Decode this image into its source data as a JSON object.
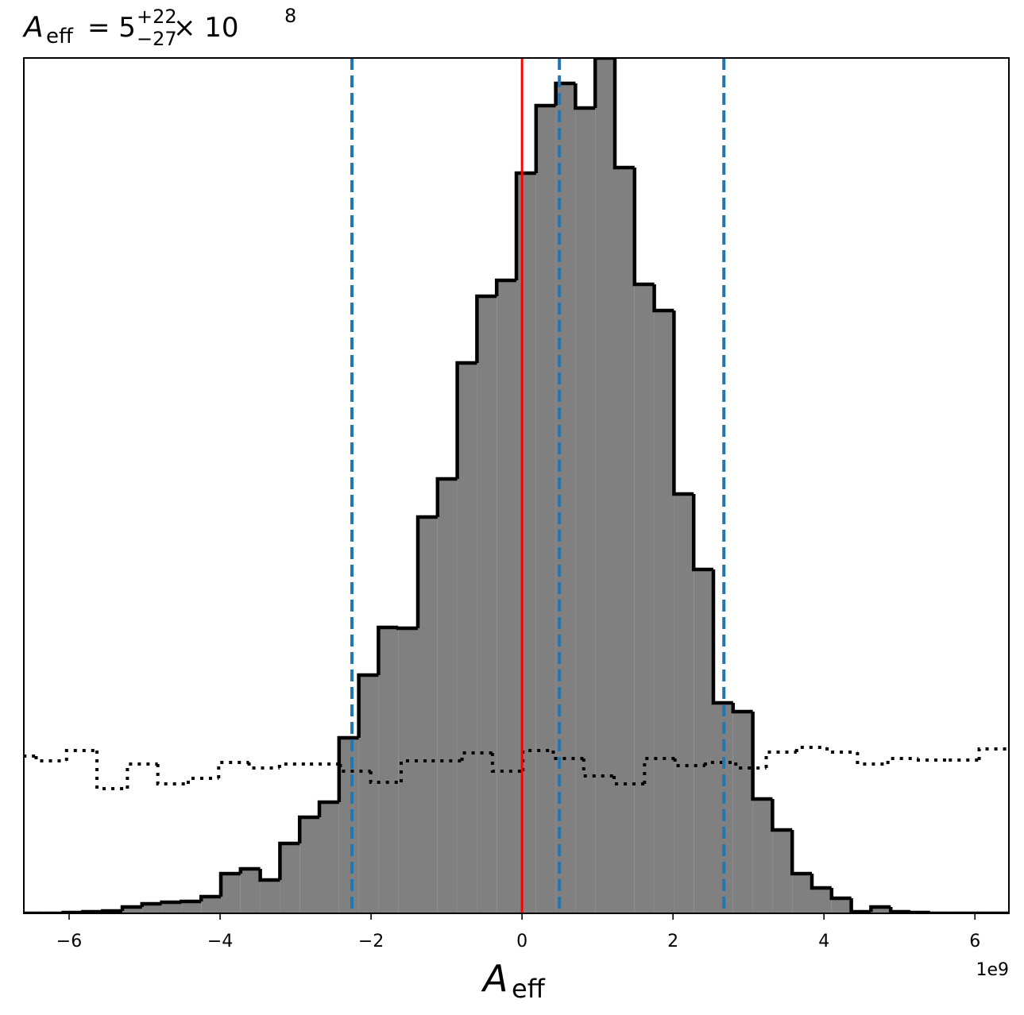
{
  "chart_data": {
    "type": "histogram",
    "title_parts": [
      "A",
      "eff",
      "= 5",
      "+22",
      "−27",
      "× 10",
      "8"
    ],
    "xlabel_parts": [
      "A",
      "eff"
    ],
    "x_offset_label": "1e9",
    "xlim": [
      -6.6,
      6.45
    ],
    "ylim": [
      0,
      1077
    ],
    "xticks": [
      {
        "value": -6,
        "label": "−6"
      },
      {
        "value": -4,
        "label": "−4"
      },
      {
        "value": -2,
        "label": "−2"
      },
      0,
      2,
      4,
      6
    ],
    "series": [
      {
        "style": "filled",
        "color": "#808080",
        "edgecolor": "#000000",
        "bins": [
          -6.6,
          -6.339,
          -6.078,
          -5.817,
          -5.556,
          -5.295,
          -5.034,
          -4.773,
          -4.512,
          -4.251,
          -3.99,
          -3.729,
          -3.468,
          -3.207,
          -2.946,
          -2.685,
          -2.424,
          -2.163,
          -1.902,
          -1.641,
          -1.38,
          -1.119,
          -0.858,
          -0.597,
          -0.336,
          -0.075,
          0.186,
          0.447,
          0.708,
          0.969,
          1.23,
          1.491,
          1.752,
          2.013,
          2.274,
          2.535,
          2.796,
          3.057,
          3.318,
          3.579,
          3.84,
          4.101,
          4.362,
          4.623,
          4.884,
          5.145,
          5.406,
          5.667,
          5.928,
          6.189,
          6.45
        ],
        "values": [
          0,
          0,
          1,
          2,
          3,
          8,
          12,
          14,
          15,
          21,
          50,
          56,
          42,
          88,
          121,
          140,
          221,
          300,
          360,
          359,
          499,
          547,
          693,
          777,
          797,
          932,
          1017,
          1045,
          1014,
          1077,
          939,
          792,
          759,
          528,
          433,
          265,
          254,
          144,
          105,
          50,
          32,
          19,
          2,
          8,
          2,
          1,
          0,
          0,
          0,
          0
        ]
      },
      {
        "style": "dotted",
        "color": "#000000",
        "bins": [
          -6.84,
          -6.437,
          -6.034,
          -5.631,
          -5.228,
          -4.825,
          -4.422,
          -4.019,
          -3.616,
          -3.213,
          -2.81,
          -2.407,
          -2.004,
          -1.601,
          -1.198,
          -0.795,
          -0.392,
          0.011,
          0.414,
          0.817,
          1.22,
          1.623,
          2.026,
          2.429,
          2.832,
          3.235,
          3.638,
          4.041,
          4.444,
          4.847,
          5.25,
          5.653,
          6.056,
          6.459
        ],
        "values": [
          198,
          192,
          205,
          157,
          188,
          163,
          170,
          190,
          183,
          188,
          188,
          179,
          165,
          192,
          192,
          202,
          179,
          205,
          195,
          173,
          163,
          195,
          186,
          190,
          183,
          203,
          209,
          203,
          188,
          195,
          193,
          193,
          207
        ]
      }
    ],
    "vlines": [
      {
        "x": 0,
        "color": "#ff0000",
        "linestyle": "solid"
      },
      {
        "x": -2.253,
        "color": "#1f77b4",
        "linestyle": "dashed"
      },
      {
        "x": 0.495,
        "color": "#1f77b4",
        "linestyle": "dashed"
      },
      {
        "x": 2.674,
        "color": "#1f77b4",
        "linestyle": "dashed"
      }
    ]
  }
}
